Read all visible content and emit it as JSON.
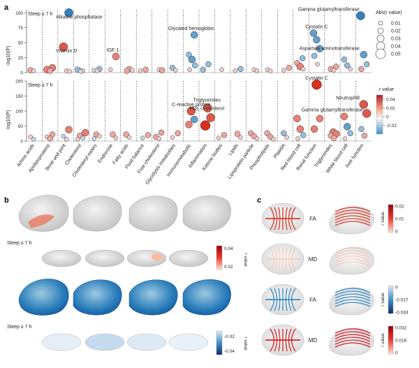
{
  "panels": {
    "a": "a",
    "b": "b",
    "c": "c"
  },
  "chart_data": [
    {
      "type": "scatter",
      "title": "Sleep ≤ 7 h",
      "ylabel": "-log10(P)",
      "ylim": [
        0,
        105
      ],
      "yticks": [
        "0",
        "25",
        "50",
        "75",
        "100"
      ],
      "ytick_values": [
        0,
        25,
        50,
        75,
        100
      ],
      "categories": [
        "Amino acids",
        "Apolipoproteins",
        "Bone and joint",
        "Cholesterol",
        "Cholesteryl esters",
        "Endocrine",
        "Fatty acids",
        "Fluid balance",
        "Free cholesterol",
        "Glycolysis metabolites",
        "Immunometabolic",
        "Inflammation",
        "Ketone bodies",
        "Lipids",
        "Lipoprotein particle",
        "Phospholipids",
        "Platelet",
        "Red blood cell",
        "Renal function",
        "Triglycerides",
        "White blood cell",
        "liver function"
      ],
      "annotations": [
        {
          "text": "Alkaline phosphatase",
          "cat": 2,
          "y": 100
        },
        {
          "text": "Vitamin D",
          "cat": 2,
          "y": 43
        },
        {
          "text": "IGF-1",
          "cat": 5,
          "y": 27
        },
        {
          "text": "Glycated hemoglobin",
          "cat": 10,
          "y": 63
        },
        {
          "text": "Gamma glutamyltransferase",
          "cat": 21,
          "y": 95
        },
        {
          "text": "Cystatin C",
          "cat": 18,
          "y": 66
        },
        {
          "text": "Aspartate aminotransferase",
          "cat": 21,
          "y": 30
        }
      ],
      "points": [
        {
          "cat": 0,
          "y": 4,
          "r": 0.02
        },
        {
          "cat": 0,
          "y": 3,
          "r": 0.01
        },
        {
          "cat": 1,
          "y": 8,
          "r": 0.03
        },
        {
          "cat": 1,
          "y": 5,
          "r": 0.03
        },
        {
          "cat": 1,
          "y": 3,
          "r": 0.02
        },
        {
          "cat": 2,
          "y": 100,
          "r": -0.04
        },
        {
          "cat": 2,
          "y": 43,
          "r": 0.04
        },
        {
          "cat": 2,
          "y": 3,
          "r": 0.01
        },
        {
          "cat": 2,
          "y": 2,
          "r": 0.01
        },
        {
          "cat": 3,
          "y": 4,
          "r": 0.01
        },
        {
          "cat": 3,
          "y": 3,
          "r": -0.01
        },
        {
          "cat": 3,
          "y": 5,
          "r": -0.02
        },
        {
          "cat": 3,
          "y": 2,
          "r": 0.01
        },
        {
          "cat": 4,
          "y": 6,
          "r": -0.02
        },
        {
          "cat": 4,
          "y": 4,
          "r": -0.01
        },
        {
          "cat": 4,
          "y": 3,
          "r": 0.01
        },
        {
          "cat": 5,
          "y": 27,
          "r": 0.03
        },
        {
          "cat": 5,
          "y": 5,
          "r": 0.01
        },
        {
          "cat": 6,
          "y": 6,
          "r": 0.02
        },
        {
          "cat": 6,
          "y": 4,
          "r": 0.01
        },
        {
          "cat": 6,
          "y": 3,
          "r": 0.02
        },
        {
          "cat": 7,
          "y": 5,
          "r": 0.02
        },
        {
          "cat": 7,
          "y": 3,
          "r": 0.01
        },
        {
          "cat": 8,
          "y": 5,
          "r": 0.01
        },
        {
          "cat": 8,
          "y": 4,
          "r": 0.02
        },
        {
          "cat": 9,
          "y": 8,
          "r": -0.02
        },
        {
          "cat": 9,
          "y": 4,
          "r": 0.01
        },
        {
          "cat": 10,
          "y": 63,
          "r": -0.03
        },
        {
          "cat": 10,
          "y": 30,
          "r": -0.02
        },
        {
          "cat": 10,
          "y": 22,
          "r": -0.03
        },
        {
          "cat": 10,
          "y": 12,
          "r": -0.02
        },
        {
          "cat": 10,
          "y": 5,
          "r": 0.01
        },
        {
          "cat": 11,
          "y": 14,
          "r": -0.02
        },
        {
          "cat": 11,
          "y": 5,
          "r": -0.02
        },
        {
          "cat": 12,
          "y": 5,
          "r": 0.01
        },
        {
          "cat": 13,
          "y": 6,
          "r": -0.02
        },
        {
          "cat": 13,
          "y": 3,
          "r": 0.01
        },
        {
          "cat": 14,
          "y": 5,
          "r": 0.01
        },
        {
          "cat": 14,
          "y": 3,
          "r": 0.01
        },
        {
          "cat": 15,
          "y": 5,
          "r": 0.01
        },
        {
          "cat": 15,
          "y": 3,
          "r": 0.01
        },
        {
          "cat": 16,
          "y": 8,
          "r": 0.02
        },
        {
          "cat": 16,
          "y": 4,
          "r": 0.01
        },
        {
          "cat": 17,
          "y": 24,
          "r": -0.02
        },
        {
          "cat": 17,
          "y": 16,
          "r": 0.02
        },
        {
          "cat": 17,
          "y": 10,
          "r": 0.03
        },
        {
          "cat": 17,
          "y": 6,
          "r": 0.01
        },
        {
          "cat": 18,
          "y": 66,
          "r": -0.03
        },
        {
          "cat": 18,
          "y": 55,
          "r": -0.03
        },
        {
          "cat": 18,
          "y": 40,
          "r": -0.03
        },
        {
          "cat": 18,
          "y": 28,
          "r": -0.02
        },
        {
          "cat": 18,
          "y": 14,
          "r": 0.01
        },
        {
          "cat": 19,
          "y": 10,
          "r": 0.02
        },
        {
          "cat": 19,
          "y": 6,
          "r": 0.02
        },
        {
          "cat": 19,
          "y": 4,
          "r": 0.01
        },
        {
          "cat": 20,
          "y": 22,
          "r": -0.02
        },
        {
          "cat": 20,
          "y": 12,
          "r": -0.02
        },
        {
          "cat": 20,
          "y": 6,
          "r": 0.01
        },
        {
          "cat": 21,
          "y": 95,
          "r": -0.04
        },
        {
          "cat": 21,
          "y": 30,
          "r": -0.03
        },
        {
          "cat": 21,
          "y": 14,
          "r": -0.02
        },
        {
          "cat": 21,
          "y": 6,
          "r": 0.02
        }
      ],
      "legend": {
        "title": "Abs(r value)",
        "values": [
          "0.01",
          "0.02",
          "0.03",
          "0.04",
          "0.05"
        ],
        "sizes": [
          0.01,
          0.02,
          0.03,
          0.04,
          0.05
        ]
      }
    },
    {
      "type": "scatter",
      "title": "Sleep ≥ 7 h",
      "ylabel": "-log10(P)",
      "ylim": [
        0,
        200
      ],
      "yticks": [
        "0",
        "50",
        "100",
        "150",
        "200"
      ],
      "ytick_values": [
        0,
        50,
        100,
        150,
        200
      ],
      "categories": [
        "Amino acids",
        "Apolipoproteins",
        "Bone and joint",
        "Cholesterol",
        "Cholesteryl esters",
        "Endocrine",
        "Fatty acids",
        "Fluid balance",
        "Free cholesterol",
        "Glycolysis metabolites",
        "Immunometabolic",
        "Inflammation",
        "Ketone bodies",
        "Lipids",
        "Lipoprotein particle",
        "Phospholipids",
        "Platelet",
        "Red blood cell",
        "Renal function",
        "Triglycerides",
        "White blood cell",
        "liver function"
      ],
      "annotations": [
        {
          "text": "Cystatin C",
          "cat": 18,
          "y": 188
        },
        {
          "text": "Triglycerides",
          "cat": 11,
          "y": 115
        },
        {
          "text": "C-reactive protein",
          "cat": 10,
          "y": 100
        },
        {
          "text": "HDL cholesterol",
          "cat": 11,
          "y": 87
        },
        {
          "text": "Neutrophill",
          "cat": 21,
          "y": 122
        },
        {
          "text": "Gamma glutamyltransferase",
          "cat": 19,
          "y": 82
        }
      ],
      "points": [
        {
          "cat": 0,
          "y": 14,
          "r": 0.01
        },
        {
          "cat": 0,
          "y": 6,
          "r": -0.01
        },
        {
          "cat": 1,
          "y": 22,
          "r": 0.02
        },
        {
          "cat": 1,
          "y": 14,
          "r": 0.01
        },
        {
          "cat": 1,
          "y": 8,
          "r": 0.02
        },
        {
          "cat": 2,
          "y": 38,
          "r": 0.03
        },
        {
          "cat": 2,
          "y": 16,
          "r": -0.01
        },
        {
          "cat": 2,
          "y": 6,
          "r": 0.01
        },
        {
          "cat": 3,
          "y": 28,
          "r": 0.03
        },
        {
          "cat": 3,
          "y": 18,
          "r": 0.02
        },
        {
          "cat": 3,
          "y": 10,
          "r": -0.01
        },
        {
          "cat": 3,
          "y": 6,
          "r": 0.01
        },
        {
          "cat": 4,
          "y": 22,
          "r": 0.02
        },
        {
          "cat": 4,
          "y": 16,
          "r": 0.01
        },
        {
          "cat": 4,
          "y": 8,
          "r": -0.01
        },
        {
          "cat": 5,
          "y": 22,
          "r": 0.02
        },
        {
          "cat": 5,
          "y": 10,
          "r": 0.01
        },
        {
          "cat": 6,
          "y": 22,
          "r": 0.02
        },
        {
          "cat": 6,
          "y": 12,
          "r": 0.01
        },
        {
          "cat": 7,
          "y": 20,
          "r": 0.02
        },
        {
          "cat": 7,
          "y": 10,
          "r": -0.01
        },
        {
          "cat": 8,
          "y": 28,
          "r": 0.02
        },
        {
          "cat": 8,
          "y": 14,
          "r": 0.02
        },
        {
          "cat": 8,
          "y": 8,
          "r": 0.01
        },
        {
          "cat": 9,
          "y": 26,
          "r": 0.02
        },
        {
          "cat": 9,
          "y": 12,
          "r": 0.01
        },
        {
          "cat": 10,
          "y": 100,
          "r": 0.04
        },
        {
          "cat": 10,
          "y": 72,
          "r": -0.03
        },
        {
          "cat": 10,
          "y": 55,
          "r": 0.03
        },
        {
          "cat": 11,
          "y": 110,
          "r": 0.04
        },
        {
          "cat": 11,
          "y": 78,
          "r": 0.04
        },
        {
          "cat": 11,
          "y": 52,
          "r": 0.05
        },
        {
          "cat": 12,
          "y": 20,
          "r": 0.02
        },
        {
          "cat": 12,
          "y": 10,
          "r": 0.01
        },
        {
          "cat": 13,
          "y": 24,
          "r": 0.02
        },
        {
          "cat": 13,
          "y": 12,
          "r": 0.01
        },
        {
          "cat": 14,
          "y": 26,
          "r": 0.02
        },
        {
          "cat": 14,
          "y": 16,
          "r": 0.02
        },
        {
          "cat": 14,
          "y": 8,
          "r": 0.01
        },
        {
          "cat": 15,
          "y": 26,
          "r": 0.02
        },
        {
          "cat": 15,
          "y": 14,
          "r": 0.02
        },
        {
          "cat": 15,
          "y": 6,
          "r": 0.01
        },
        {
          "cat": 16,
          "y": 26,
          "r": -0.02
        },
        {
          "cat": 16,
          "y": 12,
          "r": 0.01
        },
        {
          "cat": 17,
          "y": 75,
          "r": 0.03
        },
        {
          "cat": 17,
          "y": 40,
          "r": 0.03
        },
        {
          "cat": 17,
          "y": 20,
          "r": -0.02
        },
        {
          "cat": 17,
          "y": 8,
          "r": 0.01
        },
        {
          "cat": 18,
          "y": 188,
          "r": 0.05
        },
        {
          "cat": 18,
          "y": 75,
          "r": 0.03
        },
        {
          "cat": 18,
          "y": 40,
          "r": 0.03
        },
        {
          "cat": 19,
          "y": 30,
          "r": 0.03
        },
        {
          "cat": 19,
          "y": 24,
          "r": 0.03
        },
        {
          "cat": 19,
          "y": 18,
          "r": 0.02
        },
        {
          "cat": 19,
          "y": 10,
          "r": 0.02
        },
        {
          "cat": 20,
          "y": 82,
          "r": 0.03
        },
        {
          "cat": 20,
          "y": 48,
          "r": -0.03
        },
        {
          "cat": 20,
          "y": 26,
          "r": -0.02
        },
        {
          "cat": 20,
          "y": 8,
          "r": 0.01
        },
        {
          "cat": 21,
          "y": 122,
          "r": 0.04
        },
        {
          "cat": 21,
          "y": 92,
          "r": 0.04
        },
        {
          "cat": 21,
          "y": 40,
          "r": -0.02
        },
        {
          "cat": 21,
          "y": 18,
          "r": 0.02
        }
      ],
      "colorbar": {
        "title": "r value",
        "ticks": [
          "0.04",
          "0.02",
          "0",
          "-0.02"
        ],
        "tick_values": [
          0.04,
          0.02,
          0,
          -0.02
        ],
        "range": [
          -0.04,
          0.05
        ]
      }
    }
  ],
  "panel_b": {
    "rows": [
      {
        "label": "Sleep ≤ 7 h"
      },
      {
        "label": "Sleep ≥ 7 h"
      }
    ],
    "colorbar_pos": {
      "title": "r value",
      "ticks": [
        "0.04",
        "0.02"
      ]
    },
    "colorbar_neg": {
      "title": "r value",
      "ticks": [
        "-0.02",
        "-0.04"
      ]
    }
  },
  "panel_c": {
    "rows": [
      {
        "label": "FA",
        "cb_title": "r value",
        "ticks": [
          "0.02",
          "0.01",
          "0"
        ]
      },
      {
        "label": "MD",
        "cb_title": "",
        "ticks": []
      },
      {
        "label": "FA",
        "cb_title": "r value",
        "ticks": [
          "0",
          "-0.017",
          "-0.033"
        ]
      },
      {
        "label": "MD",
        "cb_title": "r value",
        "ticks": [
          "0.032",
          "0.016",
          "0"
        ]
      }
    ]
  },
  "colors": {
    "red": "#d7301f",
    "light_red": "#fcbba1",
    "white": "#f7f7f7",
    "light_blue": "#c6dbef",
    "blue": "#2171b5",
    "dark_blue": "#08519c"
  }
}
